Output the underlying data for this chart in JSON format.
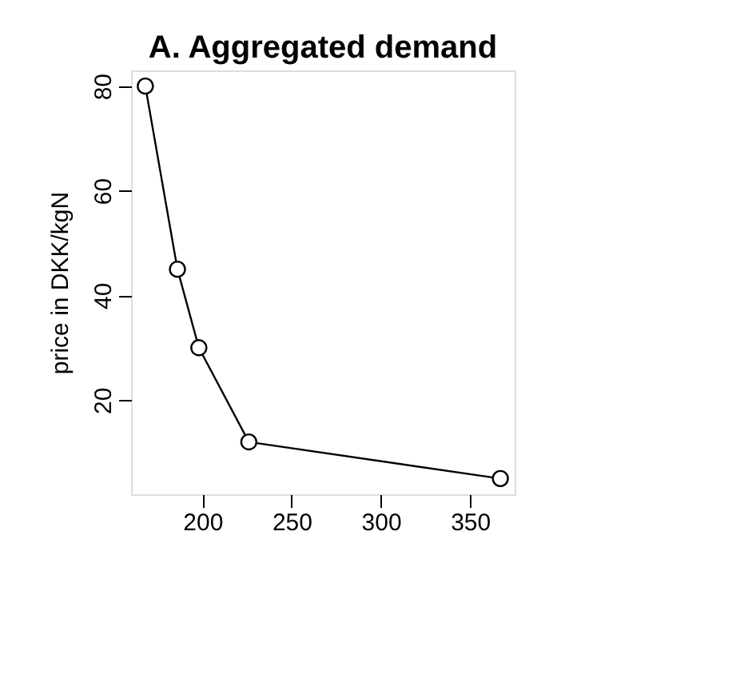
{
  "chart_data": {
    "type": "line",
    "title": "A. Aggregated demand",
    "ylabel": "price in DKK/kgN",
    "x": [
      168,
      186,
      198,
      226,
      367
    ],
    "values": [
      80,
      45,
      30,
      12,
      5
    ],
    "color": "#000000",
    "xlim": [
      160,
      375
    ],
    "ylim": [
      2,
      83
    ],
    "xticks": [
      200,
      250,
      300,
      350
    ],
    "yticks": [
      20,
      40,
      60,
      80
    ],
    "marker": "circle",
    "line_style": "solid",
    "grid": false
  }
}
